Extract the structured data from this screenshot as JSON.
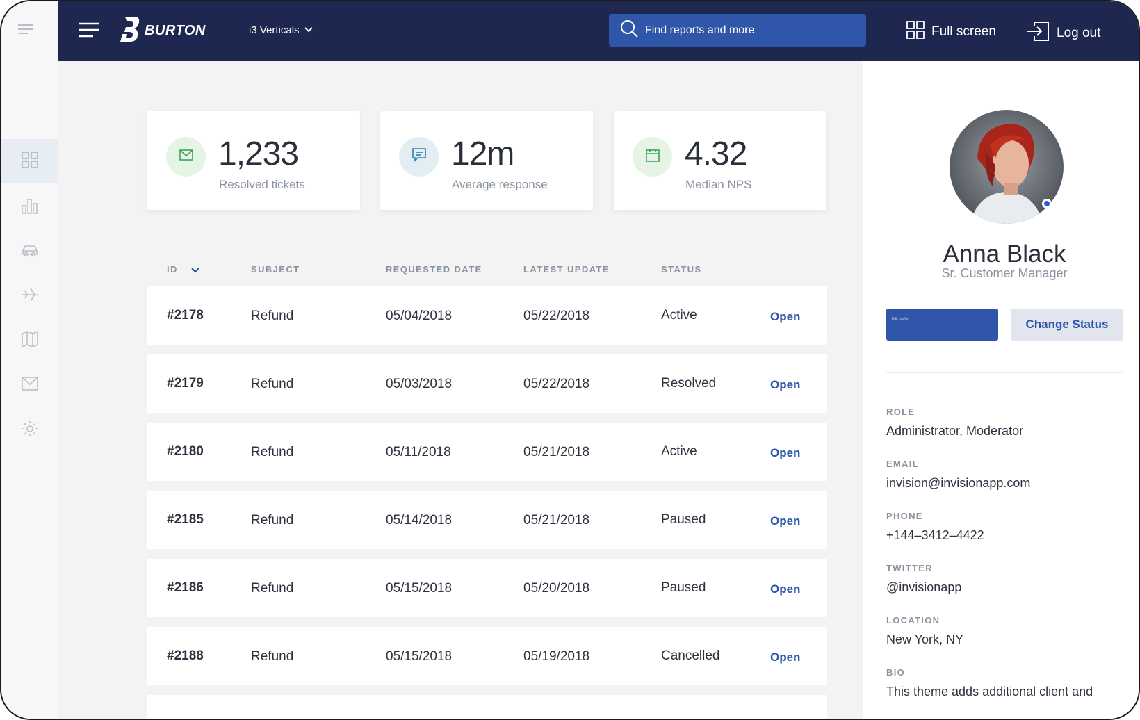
{
  "topbar": {
    "brand": "BURTON",
    "vertical_selector": "i3 Verticals",
    "search_placeholder": "Find reports and more",
    "fullscreen_label": "Full screen",
    "logout_label": "Log out",
    "bg_color": "#1d2750",
    "accent_color": "#2f56a8"
  },
  "sidebar": {
    "items": [
      {
        "icon": "dashboard-grid-icon",
        "active": true
      },
      {
        "icon": "bar-chart-icon"
      },
      {
        "icon": "car-icon"
      },
      {
        "icon": "plane-icon"
      },
      {
        "icon": "map-icon"
      },
      {
        "icon": "mail-icon"
      },
      {
        "icon": "gear-icon"
      }
    ]
  },
  "stats": [
    {
      "value": "1,233",
      "label": "Resolved tickets",
      "icon": "mail-icon",
      "color": "#e6f4e6"
    },
    {
      "value": "12m",
      "label": "Average response",
      "icon": "chat-icon",
      "color": "#e3eef4"
    },
    {
      "value": "4.32",
      "label": "Median NPS",
      "icon": "calendar-icon",
      "color": "#e6f4e6"
    }
  ],
  "table": {
    "headers": {
      "id": "ID",
      "subject": "SUBJECT",
      "requested": "REQUESTED DATE",
      "updated": "LATEST UPDATE",
      "status": "STATUS"
    },
    "rows": [
      {
        "id": "#2178",
        "subject": "Refund",
        "requested": "05/04/2018",
        "updated": "05/22/2018",
        "status": "Active",
        "action": "Open"
      },
      {
        "id": "#2179",
        "subject": "Refund",
        "requested": "05/03/2018",
        "updated": "05/22/2018",
        "status": "Resolved",
        "action": "Open"
      },
      {
        "id": "#2180",
        "subject": "Refund",
        "requested": "05/11/2018",
        "updated": "05/21/2018",
        "status": "Active",
        "action": "Open"
      },
      {
        "id": "#2185",
        "subject": "Refund",
        "requested": "05/14/2018",
        "updated": "05/21/2018",
        "status": "Paused",
        "action": "Open"
      },
      {
        "id": "#2186",
        "subject": "Refund",
        "requested": "05/15/2018",
        "updated": "05/20/2018",
        "status": "Paused",
        "action": "Open"
      },
      {
        "id": "#2188",
        "subject": "Refund",
        "requested": "05/15/2018",
        "updated": "05/19/2018",
        "status": "Cancelled",
        "action": "Open"
      }
    ]
  },
  "profile": {
    "name": "Anna Black",
    "title": "Sr. Customer Manager",
    "primary_button": "Edit profile",
    "secondary_button": "Change Status",
    "fields": {
      "role_label": "ROLE",
      "role": "Administrator, Moderator",
      "email_label": "EMAIL",
      "email": "invision@invisionapp.com",
      "phone_label": "PHONE",
      "phone": "+144–3412–4422",
      "twitter_label": "TWITTER",
      "twitter": "@invisionapp",
      "location_label": "LOCATION",
      "location": "New York, NY",
      "bio_label": "BIO",
      "bio": "This theme adds additional client and"
    }
  }
}
